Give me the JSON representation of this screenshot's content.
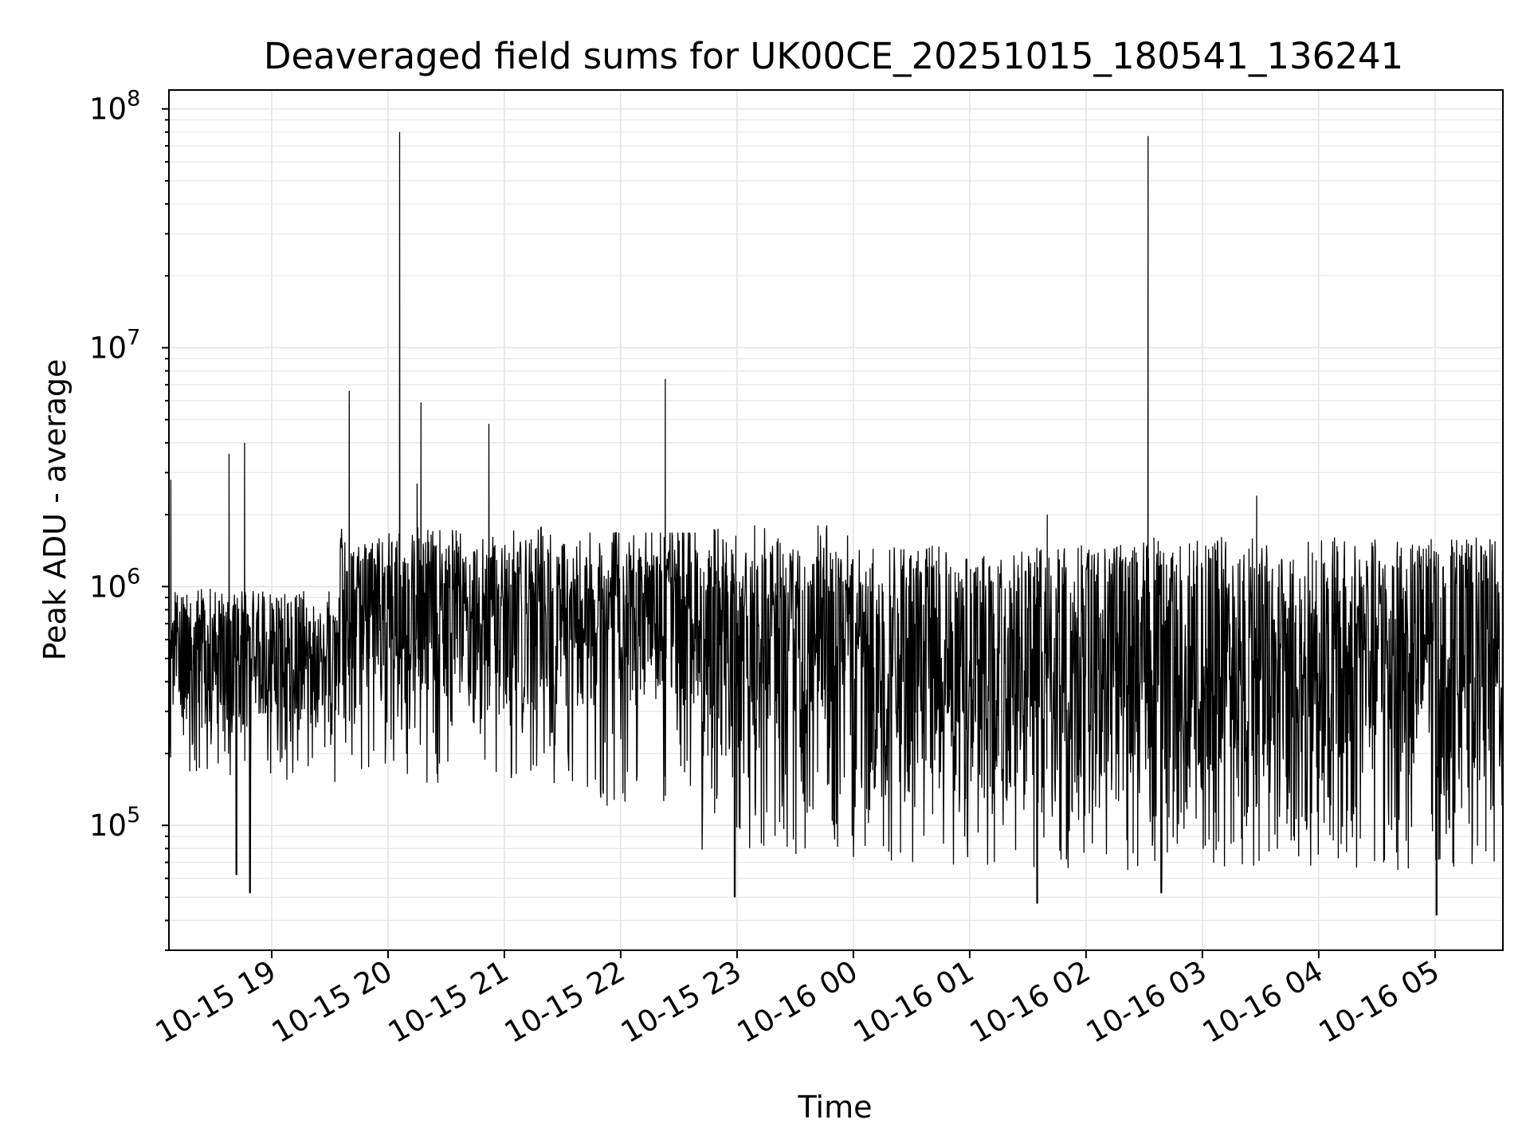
{
  "chart_data": {
    "type": "line",
    "title": "Deaveraged field sums for UK00CE_20251015_180541_136241",
    "xlabel": "Time",
    "ylabel": "Peak ADU - average",
    "yscale": "log",
    "ylim": [
      30000,
      120000000
    ],
    "xlim": [
      "2025-10-15 18:07",
      "2025-10-16 05:35"
    ],
    "grid": true,
    "line_color": "#000000",
    "x_ticks": [
      {
        "value": "2025-10-15 19:00",
        "label": "10-15 19"
      },
      {
        "value": "2025-10-15 20:00",
        "label": "10-15 20"
      },
      {
        "value": "2025-10-15 21:00",
        "label": "10-15 21"
      },
      {
        "value": "2025-10-15 22:00",
        "label": "10-15 22"
      },
      {
        "value": "2025-10-15 23:00",
        "label": "10-15 23"
      },
      {
        "value": "2025-10-16 00:00",
        "label": "10-16 00"
      },
      {
        "value": "2025-10-16 01:00",
        "label": "10-16 01"
      },
      {
        "value": "2025-10-16 02:00",
        "label": "10-16 02"
      },
      {
        "value": "2025-10-16 03:00",
        "label": "10-16 03"
      },
      {
        "value": "2025-10-16 04:00",
        "label": "10-16 04"
      },
      {
        "value": "2025-10-16 05:00",
        "label": "10-16 05"
      }
    ],
    "y_ticks": [
      {
        "value": 100000,
        "base": "10",
        "exp": "5"
      },
      {
        "value": 1000000,
        "base": "10",
        "exp": "6"
      },
      {
        "value": 10000000,
        "base": "10",
        "exp": "7"
      },
      {
        "value": 100000000,
        "base": "10",
        "exp": "8"
      }
    ],
    "series": [
      {
        "peaks": [
          {
            "x": "2025-10-15 18:08",
            "y": 2800000
          },
          {
            "x": "2025-10-15 18:38",
            "y": 3600000
          },
          {
            "x": "2025-10-15 18:46",
            "y": 4000000
          },
          {
            "x": "2025-10-15 19:40",
            "y": 6600000
          },
          {
            "x": "2025-10-15 20:06",
            "y": 80000000
          },
          {
            "x": "2025-10-15 20:17",
            "y": 5900000
          },
          {
            "x": "2025-10-15 20:15",
            "y": 2700000
          },
          {
            "x": "2025-10-15 20:52",
            "y": 4800000
          },
          {
            "x": "2025-10-15 22:23",
            "y": 7400000
          },
          {
            "x": "2025-10-16 02:32",
            "y": 77000000
          },
          {
            "x": "2025-10-16 03:28",
            "y": 2400000
          },
          {
            "x": "2025-10-16 01:40",
            "y": 2000000
          }
        ],
        "troughs": [
          {
            "x": "2025-10-15 18:42",
            "y": 62000
          },
          {
            "x": "2025-10-15 18:49",
            "y": 52000
          },
          {
            "x": "2025-10-15 22:59",
            "y": 50000
          },
          {
            "x": "2025-10-16 01:35",
            "y": 47000
          },
          {
            "x": "2025-10-16 02:39",
            "y": 52000
          },
          {
            "x": "2025-10-16 05:01",
            "y": 42000
          }
        ],
        "segments": [
          {
            "start": "2025-10-15 18:07",
            "end": "2025-10-15 19:35",
            "high": 900000,
            "low": 150000,
            "center": 500000
          },
          {
            "start": "2025-10-15 19:35",
            "end": "2025-10-15 21:40",
            "high": 1500000,
            "low": 150000,
            "center": 750000
          },
          {
            "start": "2025-10-15 21:40",
            "end": "2025-10-15 22:40",
            "high": 1400000,
            "low": 120000,
            "center": 800000
          },
          {
            "start": "2025-10-15 22:40",
            "end": "2025-10-16 00:00",
            "high": 1500000,
            "low": 75000,
            "center": 600000
          },
          {
            "start": "2025-10-16 00:00",
            "end": "2025-10-16 02:15",
            "high": 1500000,
            "low": 65000,
            "center": 450000
          },
          {
            "start": "2025-10-16 02:15",
            "end": "2025-10-16 05:35",
            "high": 1500000,
            "low": 65000,
            "center": 500000
          }
        ]
      }
    ]
  }
}
